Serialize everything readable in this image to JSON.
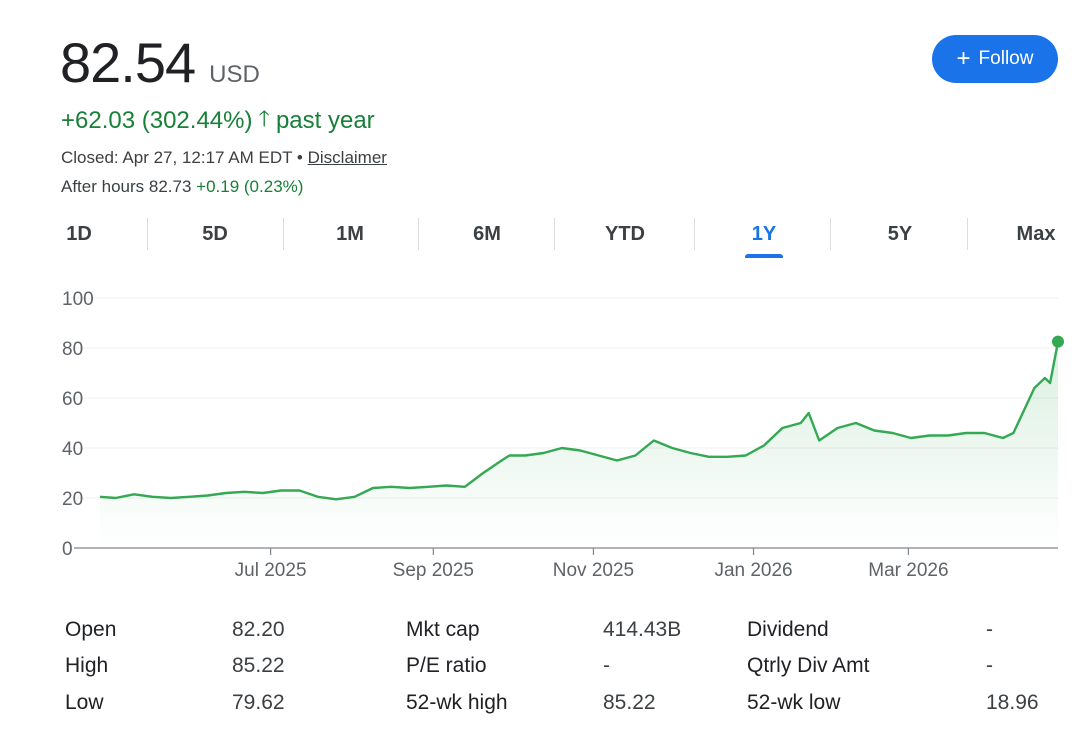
{
  "quote": {
    "price": "82.54",
    "currency": "USD",
    "change": "+62.03 (302.44%)",
    "change_arrow": "🡑",
    "change_period": "past year",
    "closed_text": "Closed: Apr 27, 12:17 AM EDT •",
    "disclaimer": "Disclaimer",
    "after_hours_label": "After hours 82.73",
    "after_hours_change": "+0.19 (0.23%)",
    "positive_color": "#188038"
  },
  "follow_button": {
    "label": "Follow",
    "icon": "plus-icon"
  },
  "tabs": [
    {
      "label": "1D",
      "active": false
    },
    {
      "label": "5D",
      "active": false
    },
    {
      "label": "1M",
      "active": false
    },
    {
      "label": "6M",
      "active": false
    },
    {
      "label": "YTD",
      "active": false
    },
    {
      "label": "1Y",
      "active": true
    },
    {
      "label": "5Y",
      "active": false
    },
    {
      "label": "Max",
      "active": false
    }
  ],
  "chart_data": {
    "type": "line",
    "title": "",
    "xlabel": "",
    "ylabel": "",
    "ylim": [
      0,
      100
    ],
    "yticks": [
      0,
      20,
      40,
      60,
      80,
      100
    ],
    "xticks": [
      "Jul 2025",
      "Sep 2025",
      "Nov 2025",
      "Jan 2026",
      "Mar 2026"
    ],
    "xtick_dates": [
      "2025-07-01",
      "2025-09-01",
      "2025-11-01",
      "2026-01-01",
      "2026-03-01"
    ],
    "x_range": [
      "2025-04-27",
      "2026-04-27"
    ],
    "line_color": "#34a853",
    "grid": true,
    "series": [
      {
        "x": [
          "2025-04-27",
          "2025-05-03",
          "2025-05-10",
          "2025-05-17",
          "2025-05-24",
          "2025-05-31",
          "2025-06-07",
          "2025-06-14",
          "2025-06-21",
          "2025-06-28",
          "2025-07-05",
          "2025-07-12",
          "2025-07-19",
          "2025-07-26",
          "2025-08-02",
          "2025-08-09",
          "2025-08-16",
          "2025-08-23",
          "2025-08-30",
          "2025-09-06",
          "2025-09-13",
          "2025-09-20",
          "2025-09-27",
          "2025-09-30",
          "2025-10-06",
          "2025-10-13",
          "2025-10-20",
          "2025-10-27",
          "2025-11-03",
          "2025-11-10",
          "2025-11-17",
          "2025-11-24",
          "2025-12-01",
          "2025-12-08",
          "2025-12-15",
          "2025-12-22",
          "2025-12-29",
          "2026-01-05",
          "2026-01-12",
          "2026-01-19",
          "2026-01-22",
          "2026-01-26",
          "2026-02-02",
          "2026-02-09",
          "2026-02-16",
          "2026-02-23",
          "2026-03-02",
          "2026-03-09",
          "2026-03-16",
          "2026-03-23",
          "2026-03-30",
          "2026-04-06",
          "2026-04-10",
          "2026-04-14",
          "2026-04-18",
          "2026-04-22",
          "2026-04-24",
          "2026-04-27"
        ],
        "values": [
          20.5,
          20,
          21.5,
          20.5,
          20,
          20.5,
          21,
          22,
          22.5,
          22,
          23,
          23,
          20.5,
          19.5,
          20.5,
          24,
          24.5,
          24,
          24.5,
          25,
          24.5,
          30,
          35,
          37,
          37,
          38,
          40,
          39,
          37,
          35,
          37,
          43,
          40,
          38,
          36.5,
          36.5,
          37,
          41,
          48,
          50,
          54,
          43,
          48,
          50,
          47,
          46,
          44,
          45,
          45,
          46,
          46,
          44,
          46,
          55,
          64,
          68,
          66,
          82.54
        ]
      }
    ]
  },
  "stats": {
    "open_label": "Open",
    "open_value": "82.20",
    "high_label": "High",
    "high_value": "85.22",
    "low_label": "Low",
    "low_value": "79.62",
    "mktcap_label": "Mkt cap",
    "mktcap_value": "414.43B",
    "pe_label": "P/E ratio",
    "pe_value": "-",
    "wkhigh_label": "52-wk high",
    "wkhigh_value": "85.22",
    "dividend_label": "Dividend",
    "dividend_value": "-",
    "qtrly_label": "Qtrly Div Amt",
    "qtrly_value": "-",
    "wklow_label": "52-wk low",
    "wklow_value": "18.96"
  }
}
